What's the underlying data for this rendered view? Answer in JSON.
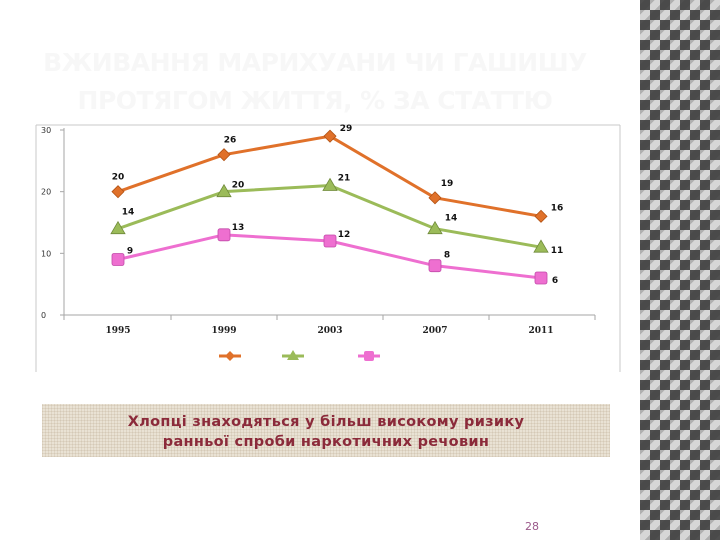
{
  "slide": {
    "title_lines": [
      "ВЖИВАННЯ МАРИХУАНИ ЧИ ГАШИШУ",
      "ПРОТЯГОМ ЖИТТЯ, % ЗА СТАТТЮ"
    ],
    "note_lines": [
      "Хлопці знаходяться у більш високому ризику",
      "ранньої спроби наркотичних речовин"
    ],
    "page_number": "28"
  },
  "colors": {
    "series_orange": "#e0712a",
    "series_green": "#9bbb59",
    "series_pink": "#ee6fd0",
    "note_text": "#8b2a3a"
  },
  "chart_data": {
    "type": "line",
    "x": [
      "1995",
      "1999",
      "2003",
      "2007",
      "2011"
    ],
    "ylim": [
      0,
      30
    ],
    "yticks": [
      0,
      10,
      20,
      30
    ],
    "ytick_labels": [
      "0",
      "10",
      "20",
      "30"
    ],
    "grid": false,
    "legend": "bottom",
    "series": [
      {
        "values": [
          20,
          26,
          29,
          19,
          16
        ],
        "marker": "diamond",
        "color": "#e0712a"
      },
      {
        "values": [
          14,
          20,
          21,
          14,
          11
        ],
        "marker": "triangle",
        "color": "#9bbb59"
      },
      {
        "values": [
          9,
          13,
          12,
          8,
          6
        ],
        "marker": "square",
        "color": "#ee6fd0"
      }
    ]
  }
}
